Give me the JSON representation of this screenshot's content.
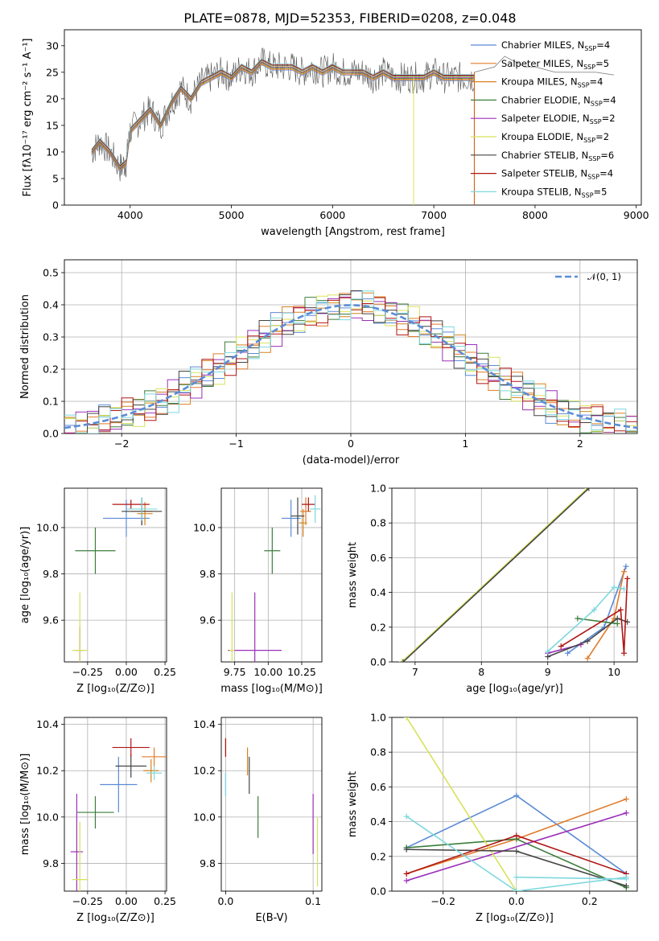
{
  "figure": {
    "title": "PLATE=0878, MJD=52353, FIBERID=0208, z=0.048"
  },
  "series_styles": [
    {
      "name": "Chabrier MILES",
      "nssp": "4",
      "color": "#5b8bd6"
    },
    {
      "name": "Salpeter MILES",
      "nssp": "5",
      "color": "#e07b2a"
    },
    {
      "name": "Kroupa MILES",
      "nssp": "4",
      "color": "#d6831e"
    },
    {
      "name": "Chabrier ELODIE",
      "nssp": "4",
      "color": "#3b7d3b"
    },
    {
      "name": "Salpeter ELODIE",
      "nssp": "2",
      "color": "#9b30b8"
    },
    {
      "name": "Kroupa ELODIE",
      "nssp": "2",
      "color": "#d7e25a"
    },
    {
      "name": "Chabrier STELIB",
      "nssp": "6",
      "color": "#444444"
    },
    {
      "name": "Salpeter STELIB",
      "nssp": "4",
      "color": "#b01515"
    },
    {
      "name": "Kroupa STELIB",
      "nssp": "5",
      "color": "#7fd8dd"
    }
  ],
  "chart_data": [
    {
      "id": "spectrum",
      "type": "line",
      "xlabel": "wavelength [Angstrom, rest frame]",
      "ylabel": "Flux [fλ10⁻¹⁷ erg cm⁻² s⁻¹ A⁻¹]",
      "xlim": [
        3350,
        9050
      ],
      "ylim": [
        0,
        33
      ],
      "xticks": [
        "4000",
        "5000",
        "6000",
        "7000",
        "8000",
        "9000"
      ],
      "yticks": [
        "0",
        "5",
        "10",
        "15",
        "20",
        "25",
        "30"
      ],
      "legend_position": "upper right",
      "data_x": [
        3620,
        3700,
        3800,
        3900,
        3960,
        4000,
        4100,
        4200,
        4300,
        4400,
        4500,
        4600,
        4700,
        4800,
        4900,
        5000,
        5100,
        5200,
        5300,
        5400,
        5500,
        5600,
        5700,
        5800,
        5900,
        6000,
        6100,
        6200,
        6300,
        6400,
        6500,
        6600,
        6700,
        6800,
        6900,
        7000,
        7100,
        7200,
        7300,
        7400
      ],
      "data_y": [
        10,
        12,
        10,
        7,
        8,
        14,
        16,
        18,
        15,
        19,
        22,
        20,
        23,
        24,
        25,
        24,
        26,
        25,
        27,
        26,
        26,
        26,
        25,
        26,
        25,
        26,
        25,
        25,
        25,
        24,
        25,
        24,
        24,
        24,
        24,
        25,
        24,
        24,
        24,
        24
      ],
      "model_x": [
        7400,
        7600,
        7700,
        7800,
        7900,
        8000,
        8200,
        8400,
        8600,
        8780
      ],
      "model_y": [
        25,
        26,
        28,
        27,
        26,
        26,
        25,
        25,
        25,
        24.5
      ]
    },
    {
      "id": "residuals",
      "type": "area",
      "xlabel": "(data-model)/error",
      "ylabel": "Normed distribution",
      "xlim": [
        -2.5,
        2.5
      ],
      "ylim": [
        0,
        0.54
      ],
      "xticks": [
        "−2",
        "−1",
        "0",
        "1",
        "2"
      ],
      "yticks": [
        "0.0",
        "0.1",
        "0.2",
        "0.3",
        "0.4",
        "0.5"
      ],
      "legend": "𝒩(0, 1)",
      "bin_width": 0.1
    },
    {
      "id": "age-vs-Z",
      "type": "scatter",
      "xlabel": "Z [log₁₀(Z/Z⊙)]",
      "ylabel": "age  [log₁₀(age/yr)]",
      "xlim": [
        -0.4,
        0.26
      ],
      "ylim": [
        9.42,
        10.17
      ],
      "xticks": [
        "−0.25",
        "0.00",
        "0.25"
      ],
      "yticks": [
        "9.6",
        "9.8",
        "10.0"
      ],
      "points": [
        {
          "series": 0,
          "x": 0.0,
          "xerr": 0.15,
          "y": 10.04,
          "yerr": 0.08
        },
        {
          "series": 1,
          "x": 0.1,
          "xerr": 0.07,
          "y": 10.07,
          "yerr": 0.06
        },
        {
          "series": 2,
          "x": 0.12,
          "xerr": 0.05,
          "y": 10.06,
          "yerr": 0.05
        },
        {
          "series": 3,
          "x": -0.2,
          "xerr": 0.13,
          "y": 9.9,
          "yerr": 0.1
        },
        {
          "series": 4,
          "x": -0.3,
          "xerr": 0.03,
          "y": 9.47,
          "yerr": 0.1
        },
        {
          "series": 5,
          "x": -0.3,
          "xerr": 0.05,
          "y": 9.47,
          "yerr": 0.25
        },
        {
          "series": 6,
          "x": 0.1,
          "xerr": 0.13,
          "y": 10.07,
          "yerr": 0.06
        },
        {
          "series": 7,
          "x": 0.03,
          "xerr": 0.12,
          "y": 10.1,
          "yerr": 0.02
        },
        {
          "series": 8,
          "x": 0.1,
          "xerr": 0.1,
          "y": 10.08,
          "yerr": 0.05
        }
      ]
    },
    {
      "id": "age-vs-mass",
      "type": "scatter",
      "xlabel": "mass [log₁₀(M/M⊙)]",
      "ylabel": "",
      "xlim": [
        9.65,
        10.4
      ],
      "ylim": [
        9.42,
        10.17
      ],
      "xticks": [
        "9.75",
        "10.00",
        "10.25"
      ],
      "yticks": [
        "9.6",
        "9.8",
        "10.0"
      ],
      "points": [
        {
          "series": 0,
          "x": 10.17,
          "xerr": 0.07,
          "y": 10.04,
          "yerr": 0.08
        },
        {
          "series": 1,
          "x": 10.28,
          "xerr": 0.04,
          "y": 10.07,
          "yerr": 0.06
        },
        {
          "series": 2,
          "x": 10.26,
          "xerr": 0.03,
          "y": 10.02,
          "yerr": 0.06
        },
        {
          "series": 3,
          "x": 10.03,
          "xerr": 0.06,
          "y": 9.9,
          "yerr": 0.1
        },
        {
          "series": 4,
          "x": 9.9,
          "xerr": 0.2,
          "y": 9.47,
          "yerr": 0.25
        },
        {
          "series": 5,
          "x": 9.73,
          "xerr": 0.02,
          "y": 9.47,
          "yerr": 0.25
        },
        {
          "series": 6,
          "x": 10.22,
          "xerr": 0.05,
          "y": 10.05,
          "yerr": 0.08
        },
        {
          "series": 7,
          "x": 10.3,
          "xerr": 0.05,
          "y": 10.1,
          "yerr": 0.03
        },
        {
          "series": 8,
          "x": 10.35,
          "xerr": 0.04,
          "y": 10.08,
          "yerr": 0.06
        }
      ]
    },
    {
      "id": "mass-weight-vs-age",
      "type": "line",
      "xlabel": "age  [log₁₀(age/yr)]",
      "ylabel": "mass weight",
      "xlim": [
        6.65,
        10.35
      ],
      "ylim": [
        0,
        1
      ],
      "xticks": [
        "7",
        "8",
        "9",
        "10"
      ],
      "yticks": [
        "0.0",
        "0.2",
        "0.4",
        "0.6",
        "0.8",
        "1.0"
      ],
      "series": [
        {
          "style": 0,
          "x": [
            9.3,
            9.85,
            10.18
          ],
          "y": [
            0.05,
            0.2,
            0.55
          ]
        },
        {
          "style": 1,
          "x": [
            9.6,
            10.0,
            10.15
          ],
          "y": [
            0.02,
            0.25,
            0.52
          ]
        },
        {
          "style": 3,
          "x": [
            9.45,
            10.05
          ],
          "y": [
            0.25,
            0.22
          ]
        },
        {
          "style": 4,
          "x": [
            9.0,
            9.5
          ],
          "y": [
            0.05,
            0.1
          ]
        },
        {
          "style": 5,
          "x": [
            6.8,
            9.6
          ],
          "y": [
            0.0,
            1.0
          ]
        },
        {
          "style": 6,
          "x": [
            6.82,
            9.62
          ],
          "y": [
            0.0,
            1.0
          ]
        },
        {
          "style": 6,
          "x": [
            9.0,
            9.6,
            10.05,
            10.2
          ],
          "y": [
            0.03,
            0.12,
            0.25,
            0.23
          ]
        },
        {
          "style": 7,
          "x": [
            9.2,
            10.1,
            10.15,
            10.2
          ],
          "y": [
            0.09,
            0.3,
            0.05,
            0.48
          ]
        },
        {
          "style": 8,
          "x": [
            9.0,
            9.7,
            10.0,
            10.15
          ],
          "y": [
            0.06,
            0.3,
            0.43,
            0.42
          ]
        }
      ]
    },
    {
      "id": "mass-vs-Z",
      "type": "scatter",
      "xlabel": "Z [log₁₀(Z/Z⊙)]",
      "ylabel": "mass [log₁₀(M/M⊙)]",
      "xlim": [
        -0.4,
        0.26
      ],
      "ylim": [
        9.68,
        10.43
      ],
      "xticks": [
        "−0.25",
        "0.00",
        "0.25"
      ],
      "yticks": [
        "9.8",
        "10.0",
        "10.2",
        "10.4"
      ],
      "points": [
        {
          "series": 0,
          "x": -0.05,
          "xerr": 0.12,
          "y": 10.14,
          "yerr": 0.12
        },
        {
          "series": 1,
          "x": 0.18,
          "xerr": 0.08,
          "y": 10.26,
          "yerr": 0.04
        },
        {
          "series": 2,
          "x": 0.16,
          "xerr": 0.05,
          "y": 10.2,
          "yerr": 0.05
        },
        {
          "series": 3,
          "x": -0.2,
          "xerr": 0.12,
          "y": 10.02,
          "yerr": 0.07
        },
        {
          "series": 4,
          "x": -0.32,
          "xerr": 0.04,
          "y": 9.85,
          "yerr": 0.25
        },
        {
          "series": 5,
          "x": -0.3,
          "xerr": 0.05,
          "y": 9.73,
          "yerr": 0.25
        },
        {
          "series": 6,
          "x": 0.03,
          "xerr": 0.1,
          "y": 10.22,
          "yerr": 0.05
        },
        {
          "series": 7,
          "x": 0.03,
          "xerr": 0.12,
          "y": 10.3,
          "yerr": 0.04
        },
        {
          "series": 8,
          "x": 0.18,
          "xerr": 0.05,
          "y": 10.19,
          "yerr": 0.03
        }
      ]
    },
    {
      "id": "mass-vs-ebv",
      "type": "scatter",
      "xlabel": "E(B-V)",
      "ylabel": "",
      "xlim": [
        -0.005,
        0.11
      ],
      "ylim": [
        9.68,
        10.43
      ],
      "xticks": [
        "0.0",
        "0.1"
      ],
      "yticks": [
        "9.8",
        "10.0",
        "10.2",
        "10.4"
      ],
      "points": [
        {
          "series": 0,
          "x": 0.0,
          "yerr": 0.05,
          "y": 10.14
        },
        {
          "series": 1,
          "x": 0.0,
          "yerr": 0.04,
          "y": 10.3
        },
        {
          "series": 2,
          "x": 0.025,
          "yerr": 0.06,
          "y": 10.24
        },
        {
          "series": 3,
          "x": 0.037,
          "yerr": 0.09,
          "y": 10.0
        },
        {
          "series": 4,
          "x": 0.1,
          "yerr": 0.13,
          "y": 9.97
        },
        {
          "series": 5,
          "x": 0.105,
          "yerr": 0.15,
          "y": 9.85
        },
        {
          "series": 6,
          "x": 0.027,
          "yerr": 0.08,
          "y": 10.18
        },
        {
          "series": 7,
          "x": 0.0,
          "yerr": 0.04,
          "y": 10.3
        },
        {
          "series": 8,
          "x": 0.0,
          "yerr": 0.05,
          "y": 10.14
        }
      ]
    },
    {
      "id": "mass-weight-vs-Z",
      "type": "line",
      "xlabel": "Z [log₁₀(Z/Z⊙)]",
      "ylabel": "mass weight",
      "xlim": [
        -0.34,
        0.33
      ],
      "ylim": [
        0,
        1
      ],
      "xticks": [
        "−0.2",
        "0.0",
        "0.2"
      ],
      "yticks": [
        "0.0",
        "0.2",
        "0.4",
        "0.6",
        "0.8",
        "1.0"
      ],
      "series": [
        {
          "style": 0,
          "x": [
            -0.3,
            0.0,
            0.3
          ],
          "y": [
            0.25,
            0.55,
            0.1
          ]
        },
        {
          "style": 1,
          "x": [
            -0.3,
            0.0,
            0.3
          ],
          "y": [
            0.1,
            0.3,
            0.53
          ]
        },
        {
          "style": 3,
          "x": [
            -0.3,
            0.0,
            0.3
          ],
          "y": [
            0.25,
            0.3,
            0.02
          ]
        },
        {
          "style": 4,
          "x": [
            -0.3,
            0.3
          ],
          "y": [
            0.06,
            0.45
          ]
        },
        {
          "style": 5,
          "x": [
            -0.3,
            0.0
          ],
          "y": [
            1.0,
            0.0
          ]
        },
        {
          "style": 6,
          "x": [
            -0.3,
            0.0,
            0.3
          ],
          "y": [
            0.24,
            0.23,
            0.03
          ]
        },
        {
          "style": 7,
          "x": [
            -0.3,
            0.0,
            0.3
          ],
          "y": [
            0.1,
            0.32,
            0.1
          ]
        },
        {
          "style": 8,
          "x": [
            -0.3,
            0.0,
            0.3
          ],
          "y": [
            0.43,
            0.0,
            0.08
          ]
        },
        {
          "style": 8,
          "x": [
            0.0,
            0.3
          ],
          "y": [
            0.08,
            0.07
          ]
        }
      ]
    }
  ]
}
